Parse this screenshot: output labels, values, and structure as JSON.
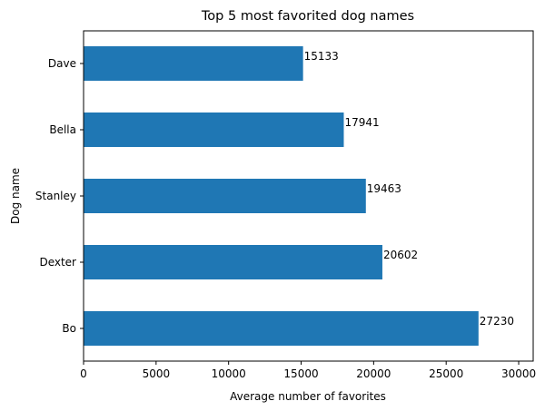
{
  "chart_data": {
    "type": "bar",
    "orientation": "horizontal",
    "title": "Top 5 most favorited dog names",
    "xlabel": "Average number of favorites",
    "ylabel": "Dog name",
    "categories": [
      "Dave",
      "Bella",
      "Stanley",
      "Dexter",
      "Bo"
    ],
    "values": [
      15133,
      17941,
      19463,
      20602,
      27230
    ],
    "data_labels": [
      "15133",
      "17941",
      "19463",
      "20602",
      "27230"
    ],
    "xlim": [
      0,
      31000
    ],
    "xticks": [
      0,
      5000,
      10000,
      15000,
      20000,
      25000,
      30000
    ],
    "xtick_labels": [
      "0",
      "5000",
      "10000",
      "15000",
      "20000",
      "25000",
      "30000"
    ],
    "grid": false,
    "bar_color": "#1f77b4"
  }
}
